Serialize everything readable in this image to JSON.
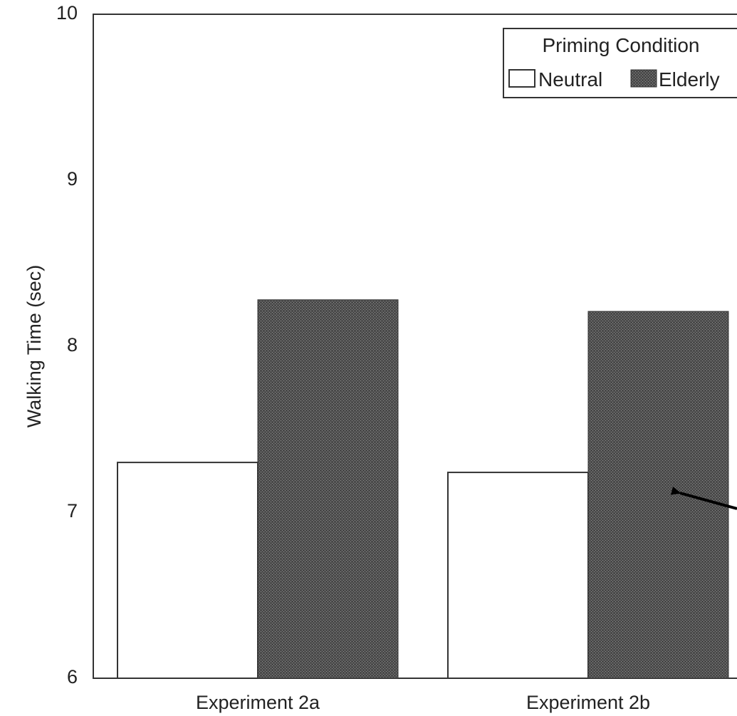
{
  "chart_data": {
    "type": "bar",
    "categories": [
      "Experiment 2a",
      "Experiment 2b"
    ],
    "series": [
      {
        "name": "Neutral",
        "values": [
          7.3,
          7.24
        ],
        "color": "#ffffff"
      },
      {
        "name": "Elderly",
        "values": [
          8.28,
          8.21
        ],
        "color": "#4e4e4e"
      }
    ],
    "xlabel": "",
    "ylabel": "Walking Time (sec)",
    "ylim": [
      6,
      10
    ],
    "yticks": [
      "6",
      "7",
      "8",
      "9",
      "10"
    ],
    "grid": false,
    "legend": {
      "title": "Priming Condition",
      "position": "top-right"
    },
    "annotations": [
      "arrow pointing to Elderly bar of Experiment 2b"
    ]
  }
}
